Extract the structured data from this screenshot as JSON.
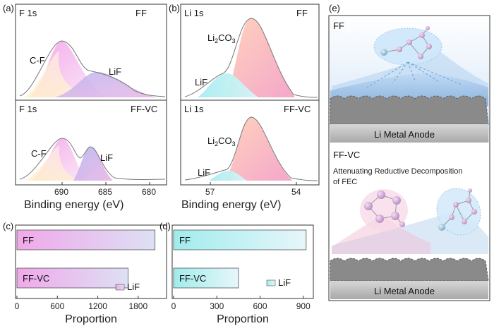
{
  "panels": {
    "a": {
      "tag": "(a)",
      "xlabel": "Binding energy (eV)",
      "xticks": [
        "690",
        "685",
        "680"
      ],
      "top": {
        "element": "F 1s",
        "sample": "FF",
        "peaks": [
          "C-F",
          "LiF"
        ]
      },
      "bottom": {
        "element": "F 1s",
        "sample": "FF-VC",
        "peaks": [
          "C-F",
          "LiF"
        ]
      }
    },
    "b": {
      "tag": "(b)",
      "xlabel": "Binding energy (eV)",
      "xticks": [
        "57",
        "54"
      ],
      "top": {
        "element": "Li 1s",
        "sample": "FF",
        "li2co3": "Li",
        "li2co3_sub": "2",
        "li2co3_tail": "CO",
        "li2co3_sub2": "3",
        "lif": "LiF"
      },
      "bottom": {
        "element": "Li 1s",
        "sample": "FF-VC",
        "li2co3": "Li",
        "li2co3_sub": "2",
        "li2co3_tail": "CO",
        "li2co3_sub2": "3",
        "lif": "LiF"
      }
    },
    "e": {
      "tag": "(e)",
      "top_label": "FF",
      "top_anode": "Li Metal Anode",
      "bottom_label": "FF-VC",
      "caption_line1": "Attenuating Reductive Decomposition",
      "caption_line2": "of FEC",
      "bottom_anode": "Li Metal Anode"
    }
  },
  "chart_data": [
    {
      "panel": "(c)",
      "type": "bar",
      "orientation": "horizontal",
      "categories": [
        "FF",
        "FF-VC"
      ],
      "values": [
        2050,
        1650
      ],
      "xlim": [
        0,
        2200
      ],
      "xticks": [
        "0",
        "600",
        "1200",
        "1800"
      ],
      "xlabel": "Proportion",
      "legend": "LiF",
      "color": "#e9a6e6"
    },
    {
      "panel": "(d)",
      "type": "bar",
      "orientation": "horizontal",
      "categories": [
        "FF",
        "FF-VC"
      ],
      "values": [
        920,
        450
      ],
      "xlim": [
        0,
        960
      ],
      "xticks": [
        "0",
        "300",
        "600",
        "900"
      ],
      "xlabel": "Proportion",
      "legend": "LiF",
      "color": "#a8ecec"
    }
  ]
}
